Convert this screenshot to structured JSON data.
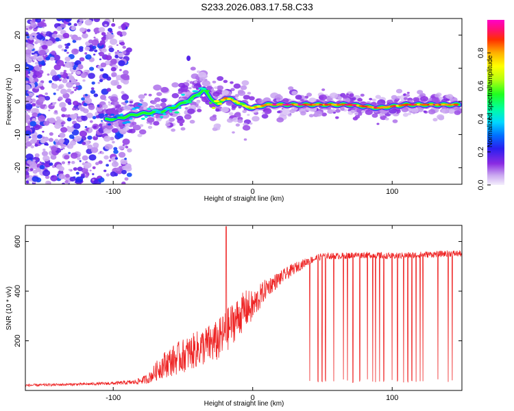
{
  "title": "S233.2026.083.17.58.C33",
  "chart_data": [
    {
      "type": "heatmap",
      "title": "S233.2026.083.17.58.C33",
      "xlabel": "Height of straight line (km)",
      "ylabel": "Frequency (Hz)",
      "xlim": [
        -163,
        150
      ],
      "ylim": [
        -25,
        25
      ],
      "xticks": [
        -100,
        0,
        100
      ],
      "yticks": [
        -20,
        -10,
        0,
        10,
        20
      ],
      "colorbar": {
        "label": "Normalized spectral amplitude",
        "range": [
          0,
          1
        ],
        "ticks": [
          0.0,
          0.2,
          0.4,
          0.6,
          0.8
        ]
      },
      "frequency_ridge": {
        "x": [
          -105,
          -95,
          -85,
          -75,
          -65,
          -55,
          -45,
          -35,
          -30,
          -25,
          -20,
          -15,
          -10,
          -5,
          0,
          10,
          30,
          50,
          70,
          90,
          110,
          130,
          148
        ],
        "freq": [
          -5.5,
          -5.0,
          -4.0,
          -3.5,
          -3.0,
          -1.5,
          0.5,
          3.5,
          1.0,
          -1.0,
          1.0,
          0.5,
          -0.5,
          -1.5,
          -2.0,
          -1.0,
          -1.0,
          -1.0,
          -1.0,
          -2.0,
          -1.0,
          -1.0,
          -1.0
        ],
        "amplitude": [
          0.3,
          0.35,
          0.4,
          0.4,
          0.45,
          0.45,
          0.5,
          0.5,
          0.6,
          0.75,
          0.9,
          0.85,
          0.7,
          0.65,
          0.8,
          0.95,
          0.95,
          0.9,
          0.95,
          0.9,
          0.9,
          0.95,
          0.85
        ]
      }
    },
    {
      "type": "line",
      "xlabel": "Height of straight line (km)",
      "ylabel": "SNR (10 * v/v)",
      "xlim": [
        -163,
        150
      ],
      "ylim": [
        0,
        665
      ],
      "xticks": [
        -100,
        0,
        100
      ],
      "yticks": [
        200,
        400,
        600
      ],
      "series": [
        {
          "name": "SNR",
          "color": "#ee2222",
          "x": [
            -163,
            -120,
            -100,
            -85,
            -75,
            -65,
            -55,
            -45,
            -35,
            -25,
            -20,
            -15,
            -5,
            0,
            10,
            20,
            30,
            40,
            50,
            60,
            80,
            100,
            120,
            140,
            150
          ],
          "mean": [
            20,
            25,
            28,
            32,
            45,
            95,
            120,
            145,
            170,
            190,
            220,
            260,
            320,
            330,
            410,
            450,
            490,
            520,
            540,
            540,
            545,
            540,
            545,
            550,
            550
          ],
          "spread": [
            8,
            8,
            10,
            15,
            30,
            80,
            100,
            110,
            120,
            130,
            140,
            130,
            120,
            100,
            60,
            45,
            35,
            25,
            20,
            20,
            20,
            20,
            20,
            20,
            20
          ],
          "peak": {
            "x": -19,
            "y": 660
          },
          "dropout_floor": 30,
          "dropouts_x": [
            41,
            47,
            50,
            52,
            58,
            65,
            68,
            72,
            77,
            82,
            86,
            88,
            91,
            94,
            100,
            104,
            108,
            111,
            114,
            117,
            120,
            122,
            133,
            140,
            143
          ]
        }
      ]
    }
  ]
}
